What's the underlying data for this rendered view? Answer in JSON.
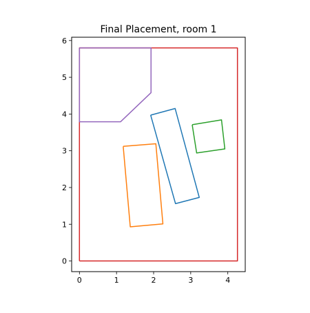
{
  "chart_data": {
    "type": "line",
    "title": "Final Placement, room 1",
    "xlabel": "",
    "ylabel": "",
    "xlim": [
      -0.21,
      4.47
    ],
    "ylim": [
      -0.29,
      6.09
    ],
    "xticks": [
      0,
      1,
      2,
      3,
      4
    ],
    "yticks": [
      0,
      1,
      2,
      3,
      4,
      5,
      6
    ],
    "grid": false,
    "series": [
      {
        "color": "#d62728",
        "points": [
          [
            0,
            0
          ],
          [
            4.26,
            0
          ],
          [
            4.26,
            5.8
          ],
          [
            0,
            5.8
          ],
          [
            0,
            0
          ]
        ]
      },
      {
        "color": "#9467bd",
        "points": [
          [
            0,
            5.8
          ],
          [
            1.93,
            5.8
          ],
          [
            1.93,
            4.58
          ],
          [
            1.11,
            3.79
          ],
          [
            0,
            3.79
          ],
          [
            0,
            5.8
          ]
        ]
      },
      {
        "color": "#1f77b4",
        "points": [
          [
            1.92,
            3.97
          ],
          [
            2.58,
            4.15
          ],
          [
            3.23,
            1.73
          ],
          [
            2.59,
            1.56
          ],
          [
            1.92,
            3.97
          ]
        ]
      },
      {
        "color": "#ff7f0e",
        "points": [
          [
            1.18,
            3.12
          ],
          [
            2.06,
            3.19
          ],
          [
            2.25,
            1.01
          ],
          [
            1.37,
            0.93
          ],
          [
            1.18,
            3.12
          ]
        ]
      },
      {
        "color": "#2ca02c",
        "points": [
          [
            3.04,
            3.71
          ],
          [
            3.83,
            3.84
          ],
          [
            3.92,
            3.05
          ],
          [
            3.16,
            2.94
          ],
          [
            3.04,
            3.71
          ]
        ]
      }
    ]
  }
}
